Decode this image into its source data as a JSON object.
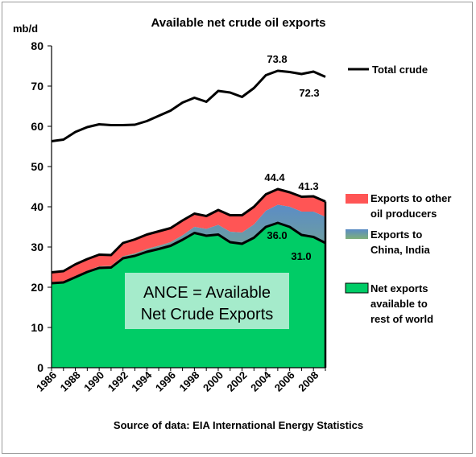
{
  "chart_data": {
    "type": "area",
    "title": "Available net crude oil exports",
    "ylabel": "mb/d",
    "xlabel": "",
    "ylim": [
      0,
      80
    ],
    "yticks": [
      0,
      10,
      20,
      30,
      40,
      50,
      60,
      70,
      80
    ],
    "x": [
      1986,
      1987,
      1988,
      1989,
      1990,
      1991,
      1992,
      1993,
      1994,
      1995,
      1996,
      1997,
      1998,
      1999,
      2000,
      2001,
      2002,
      2003,
      2004,
      2005,
      2006,
      2007,
      2008,
      2009
    ],
    "xtick_labels": [
      "1986",
      "1988",
      "1990",
      "1992",
      "1994",
      "1996",
      "1998",
      "2000",
      "2002",
      "2004",
      "2006",
      "2008"
    ],
    "series": [
      {
        "name": "Net exports available to rest of world",
        "color": "#00cc66",
        "values": [
          21.0,
          21.2,
          22.5,
          23.8,
          24.8,
          24.9,
          27.2,
          27.8,
          28.8,
          29.5,
          30.3,
          31.8,
          33.5,
          32.8,
          33.1,
          31.2,
          30.8,
          32.3,
          35.0,
          36.0,
          35.0,
          33.0,
          32.5,
          31.0
        ]
      },
      {
        "name": "Exports to China, India",
        "color": "#5f8fbf",
        "values": [
          0.3,
          0.3,
          0.3,
          0.3,
          0.4,
          0.4,
          0.5,
          0.6,
          0.7,
          0.8,
          0.9,
          1.1,
          1.5,
          1.7,
          2.4,
          2.6,
          2.8,
          3.3,
          4.0,
          4.5,
          5.0,
          5.8,
          6.3,
          6.5
        ]
      },
      {
        "name": "Exports to other oil producers",
        "color": "#ff5555",
        "values": [
          2.4,
          2.5,
          2.9,
          2.9,
          2.9,
          2.7,
          3.3,
          3.5,
          3.6,
          3.6,
          3.5,
          3.7,
          3.3,
          3.2,
          3.7,
          4.1,
          4.3,
          4.4,
          4.1,
          3.9,
          3.6,
          3.7,
          3.8,
          3.8
        ]
      },
      {
        "name": "Total crude",
        "color": "#000000",
        "values": [
          56.3,
          56.7,
          58.6,
          59.8,
          60.5,
          60.3,
          60.3,
          60.4,
          61.3,
          62.6,
          63.9,
          65.9,
          67.1,
          66.1,
          68.8,
          68.4,
          67.3,
          69.5,
          72.7,
          73.8,
          73.5,
          73.0,
          73.6,
          72.3
        ]
      }
    ],
    "annotations": [
      "73.8",
      "72.3",
      "44.4",
      "41.3",
      "36.0",
      "31.0"
    ],
    "legend": {
      "total": "Total crude",
      "other_line1": "Exports to other",
      "other_line2": "oil producers",
      "china_line1": "Exports to",
      "china_line2": "China, India",
      "net_line1": "Net exports",
      "net_line2": "available to",
      "net_line3": "rest of world"
    },
    "callout_line1": "ANCE = Available",
    "callout_line2": "Net Crude Exports",
    "source": "Source of data: EIA International Energy Statistics",
    "grid": false
  }
}
